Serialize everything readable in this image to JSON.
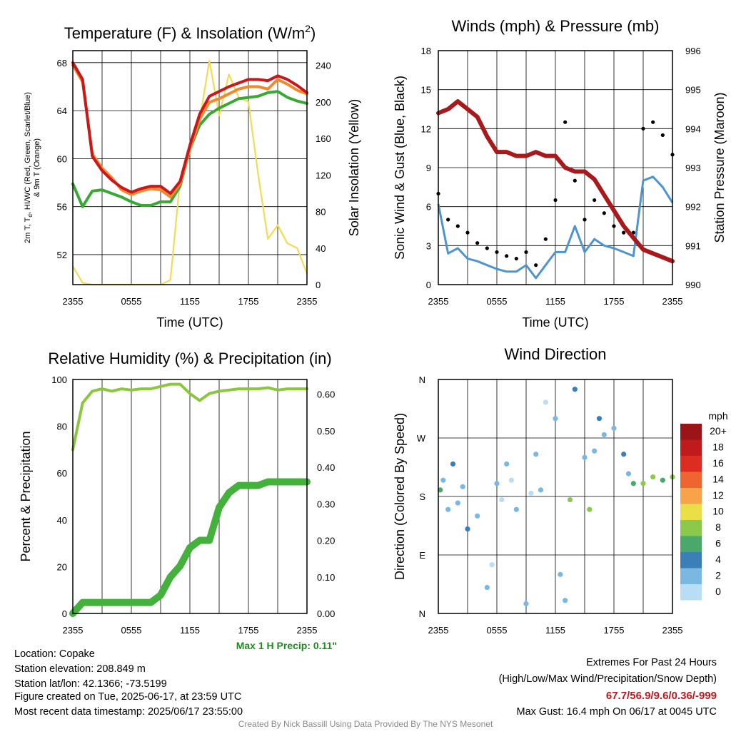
{
  "panels": {
    "temp": {
      "title": "Temperature (F) & Insolation (W/m",
      "title_sup": "2",
      "title_end": ")",
      "xlabel": "Time (UTC)",
      "ylabel_line1": "2m T, T",
      "ylabel_sub": "d",
      "ylabel_line1_end": ", HI/WC (Red, Green, Scarlet/Blue)",
      "ylabel_line2": "& 9m T (Orange)",
      "y2label": "Solar Insolation (Yellow)"
    },
    "wind": {
      "title": "Winds (mph) & Pressure (mb)",
      "xlabel": "Time (UTC)",
      "ylabel": "Sonic Wind & Gust (Blue, Black)",
      "y2label": "Station Pressure (Maroon)"
    },
    "rh": {
      "title": "Relative Humidity (%) & Precipitation (in)",
      "ylabel": "Percent & Precipitation",
      "precip_note": "Max 1 H Precip: 0.11\""
    },
    "dir": {
      "title": "Wind Direction",
      "ylabel": "Direction (Colored By Speed)",
      "legend_title": "mph",
      "legend_labels": [
        "20+",
        "18",
        "16",
        "14",
        "12",
        "10",
        "8",
        "6",
        "4",
        "2",
        "0"
      ],
      "legend_colors": [
        "#9b1418",
        "#c11a1d",
        "#dd2d20",
        "#ef6530",
        "#f8a24a",
        "#e9e047",
        "#8cc84b",
        "#4aa86b",
        "#3a7fb7",
        "#7ab8e2",
        "#b9ddf4"
      ]
    }
  },
  "station": {
    "location": "Location: Copake",
    "elevation": "Station elevation: 208.849 m",
    "latlon": "Station lat/lon: 42.1366; -73.5199",
    "created": "Figure created on Tue, 2025-06-17, at 23:59 UTC",
    "recent": "Most recent data timestamp: 2025/06/17 23:55:00"
  },
  "extremes": {
    "title": "Extremes For Past 24 Hours",
    "subtitle": "(High/Low/Max Wind/Precipitation/Snow Depth)",
    "values": "67.7/56.9/9.6/0.36/-999",
    "gust": "Max Gust: 16.4 mph On 06/17 at 0045 UTC"
  },
  "credit": "Created By Nick Bassill Using Data Provided By The NYS Mesonet",
  "chart_data": [
    {
      "type": "line",
      "x_ticks": [
        "2355",
        "0555",
        "1155",
        "1755",
        "2355"
      ],
      "x_hours_utc": [
        0,
        1,
        2,
        3,
        4,
        5,
        6,
        7,
        8,
        9,
        10,
        11,
        12,
        13,
        14,
        15,
        16,
        17,
        18,
        19,
        20,
        21,
        22,
        23,
        24
      ],
      "ylim": [
        49.5,
        69
      ],
      "y_ticks": [
        52,
        56,
        60,
        64,
        68
      ],
      "y2lim": [
        0,
        256
      ],
      "y2_ticks": [
        0,
        40,
        80,
        120,
        160,
        200,
        240
      ],
      "series": [
        {
          "color": "#c8181c",
          "values": [
            68,
            66.6,
            60.2,
            59,
            58.2,
            57.6,
            57.2,
            57.5,
            57.7,
            57.7,
            57.1,
            58.1,
            61.1,
            63.7,
            65.2,
            65.6,
            66,
            66.3,
            66.6,
            66.6,
            66.5,
            66.9,
            66.6,
            66.1,
            65.5
          ]
        },
        {
          "color": "#f08a2c",
          "values": [
            67.8,
            66.4,
            60.4,
            59.2,
            58.4,
            57.4,
            57,
            57.3,
            57.5,
            57.4,
            56.8,
            57.9,
            60.8,
            63.3,
            64.7,
            65,
            65.4,
            65.8,
            66,
            66,
            65.8,
            66.6,
            66.2,
            65.7,
            65.4
          ]
        },
        {
          "color": "#3aa835",
          "values": [
            57.9,
            56,
            57.3,
            57.4,
            57.1,
            56.8,
            56.4,
            56.1,
            56.1,
            56.4,
            56.4,
            57.7,
            60.8,
            62.8,
            63.7,
            64.2,
            64.6,
            65,
            65.1,
            65.2,
            65.5,
            65.6,
            65.1,
            64.8,
            64.6
          ]
        },
        {
          "color": "#f2dc55",
          "values": [
            20,
            2,
            0,
            0,
            0,
            0,
            0,
            0,
            0,
            0,
            5,
            115,
            150,
            180,
            245,
            185,
            230,
            205,
            200,
            120,
            50,
            65,
            45,
            40,
            12
          ]
        }
      ]
    },
    {
      "type": "line",
      "x_ticks": [
        "2355",
        "0555",
        "1155",
        "1755",
        "2355"
      ],
      "x_hours_utc": [
        0,
        1,
        2,
        3,
        4,
        5,
        6,
        7,
        8,
        9,
        10,
        11,
        12,
        13,
        14,
        15,
        16,
        17,
        18,
        19,
        20,
        21,
        22,
        23,
        24
      ],
      "ylim": [
        0,
        18
      ],
      "y_ticks": [
        0,
        3,
        6,
        9,
        12,
        15,
        18
      ],
      "y2lim": [
        990,
        996
      ],
      "y2_ticks": [
        990,
        991,
        992,
        993,
        994,
        995,
        996
      ],
      "series": [
        {
          "color": "#4e95cf",
          "values": [
            6.2,
            2.4,
            2.8,
            2.0,
            1.8,
            1.5,
            1.2,
            1.0,
            1.0,
            1.5,
            0.5,
            1.5,
            2.5,
            2.5,
            4.5,
            2.5,
            3.5,
            3.0,
            2.8,
            2.5,
            2.2,
            8.0,
            8.3,
            7.5,
            6.3
          ]
        },
        {
          "color": "#000000",
          "values": [
            7.0,
            5.0,
            4.5,
            4.0,
            3.2,
            2.8,
            2.5,
            2.2,
            2.0,
            2.5,
            1.5,
            3.5,
            6.5,
            12.5,
            8.0,
            5.0,
            6.5,
            5.5,
            4.5,
            4.0,
            4.0,
            12.0,
            12.5,
            11.5,
            10.0
          ]
        },
        {
          "color": "#a8191c",
          "values": [
            994.4,
            994.5,
            994.7,
            994.5,
            994.3,
            993.8,
            993.4,
            993.4,
            993.3,
            993.3,
            993.4,
            993.3,
            993.3,
            993.0,
            992.9,
            992.9,
            992.7,
            992.3,
            991.9,
            991.5,
            991.2,
            990.9,
            990.8,
            990.7,
            990.6
          ]
        }
      ]
    },
    {
      "type": "line",
      "x_ticks": [
        "2355",
        "0555",
        "1155",
        "1755",
        "2355"
      ],
      "x_hours_utc": [
        0,
        1,
        2,
        3,
        4,
        5,
        6,
        7,
        8,
        9,
        10,
        11,
        12,
        13,
        14,
        15,
        16,
        17,
        18,
        19,
        20,
        21,
        22,
        23,
        24
      ],
      "ylim": [
        0,
        100
      ],
      "y_ticks": [
        0,
        20,
        40,
        60,
        80,
        100
      ],
      "y2lim": [
        0,
        0.64
      ],
      "y2_ticks": [
        "0.00",
        "0.10",
        "0.20",
        "0.30",
        "0.40",
        "0.50",
        "0.60"
      ],
      "series": [
        {
          "color": "#8cc63f",
          "values": [
            70,
            90,
            95,
            96,
            95,
            96,
            95.5,
            96,
            96,
            97,
            98,
            98,
            94,
            91,
            94,
            95,
            95.5,
            96,
            96,
            96,
            96.5,
            95.5,
            96,
            96,
            96
          ]
        },
        {
          "color": "#44b13c",
          "values": [
            0,
            0.03,
            0.03,
            0.03,
            0.03,
            0.03,
            0.03,
            0.03,
            0.03,
            0.05,
            0.1,
            0.13,
            0.18,
            0.2,
            0.2,
            0.29,
            0.33,
            0.35,
            0.35,
            0.35,
            0.36,
            0.36,
            0.36,
            0.36,
            0.36
          ]
        }
      ]
    },
    {
      "type": "scatter",
      "x_ticks": [
        "2355",
        "0555",
        "1155",
        "1755",
        "2355"
      ],
      "y_ticks": [
        "N",
        "E",
        "S",
        "W",
        "N"
      ],
      "ylim": [
        0,
        360
      ],
      "x_hours_utc": [
        0.2,
        0.5,
        1,
        1.5,
        2,
        2.5,
        3,
        4,
        5,
        5.5,
        6,
        6.5,
        7,
        7.5,
        8,
        9,
        9.5,
        10,
        10.5,
        11,
        12,
        12.5,
        13,
        13.5,
        14,
        15,
        15.5,
        16,
        16.5,
        17,
        18,
        19,
        19.5,
        20,
        21,
        22,
        23,
        24
      ],
      "direction_deg": [
        190,
        205,
        160,
        230,
        170,
        195,
        130,
        150,
        40,
        75,
        200,
        175,
        230,
        205,
        160,
        15,
        185,
        245,
        190,
        325,
        300,
        60,
        20,
        175,
        345,
        240,
        160,
        250,
        300,
        275,
        285,
        245,
        215,
        200,
        200,
        210,
        205,
        210
      ],
      "speed_mph": [
        6,
        3,
        2,
        4,
        3,
        2,
        4,
        2,
        2,
        1,
        3,
        1,
        2,
        1,
        3,
        2,
        1,
        3,
        2,
        0,
        3,
        2,
        3,
        8,
        4,
        3,
        9,
        3,
        4,
        2,
        2,
        4,
        3,
        7,
        8,
        8,
        7,
        8
      ]
    }
  ]
}
